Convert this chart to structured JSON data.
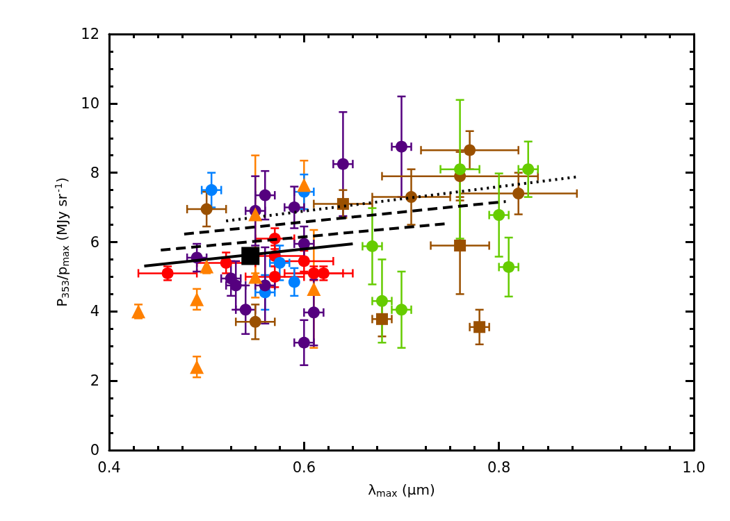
{
  "chart_data": {
    "type": "scatter",
    "xlabel": "λ$_{max}$ (μm)",
    "ylabel": "P$_{353}$/p$_{max}$ (MJy sr$^{-1}$)",
    "xlim": [
      0.4,
      1.0
    ],
    "xticks": [
      0.4,
      0.6,
      0.8,
      {
        "value": 1.0,
        "label": "1.0"
      }
    ],
    "ylim": [
      0,
      12
    ],
    "yticks": [
      0,
      2,
      4,
      6,
      8,
      10,
      12
    ],
    "grid": false,
    "series": [
      {
        "marker": "triangle",
        "color": "#ff8000",
        "x": [
          0.43,
          0.49,
          0.49,
          0.5,
          0.55,
          0.55,
          0.6,
          0.61
        ],
        "values": [
          4.0,
          4.35,
          2.4,
          5.3,
          5.0,
          6.8,
          7.65,
          4.65
        ],
        "errors": [
          0.2,
          0.3,
          0.3,
          0.2,
          0.6,
          1.7,
          0.7,
          1.7
        ],
        "xerrors": [
          null,
          null,
          null,
          null,
          null,
          null,
          null,
          null
        ]
      },
      {
        "marker": "circle",
        "color": "#ff0000",
        "x": [
          0.46,
          0.52,
          0.57,
          0.57,
          0.57,
          0.6,
          0.61,
          0.62
        ],
        "values": [
          5.1,
          5.4,
          5.0,
          5.6,
          6.1,
          5.45,
          5.1,
          5.1
        ],
        "errors": [
          0.2,
          0.3,
          0.3,
          0.3,
          0.3,
          0.3,
          0.2,
          0.2
        ],
        "xerrors": [
          0.03,
          0.03,
          0.03,
          0.03,
          0.02,
          0.03,
          0.03,
          0.03
        ]
      },
      {
        "marker": "circle",
        "color": "#0080ff",
        "x": [
          0.505,
          0.6,
          0.59,
          0.56,
          0.575
        ],
        "values": [
          7.5,
          7.45,
          4.85,
          4.55,
          5.4
        ],
        "errors": [
          0.5,
          0.5,
          0.4,
          0.5,
          0.5
        ],
        "xerrors": [
          0.01,
          0.01,
          null,
          0.01,
          0.01
        ]
      },
      {
        "marker": "circle",
        "color": "#55007f",
        "x": [
          0.64,
          0.7,
          0.56,
          0.55,
          0.59,
          0.53,
          0.54,
          0.56,
          0.6,
          0.61,
          0.49,
          0.525,
          0.6
        ],
        "values": [
          8.25,
          8.75,
          7.35,
          6.9,
          7.0,
          4.75,
          4.05,
          4.75,
          3.1,
          3.97,
          5.55,
          4.95,
          5.95
        ],
        "errors": [
          1.5,
          1.45,
          0.7,
          1.0,
          0.6,
          0.7,
          0.7,
          1.1,
          0.65,
          0.95,
          0.4,
          0.5,
          0.5
        ],
        "xerrors": [
          0.01,
          0.01,
          0.01,
          0.01,
          0.01,
          0.01,
          0.01,
          0.01,
          0.01,
          0.01,
          0.01,
          0.01,
          0.01
        ]
      },
      {
        "marker": "circle",
        "color": "#9a5000",
        "x": [
          0.5,
          0.55,
          0.71,
          0.77,
          0.76,
          0.82
        ],
        "values": [
          6.95,
          3.7,
          7.3,
          8.65,
          7.9,
          7.4
        ],
        "errors": [
          0.5,
          0.5,
          0.8,
          0.55,
          0.7,
          0.6
        ],
        "xerrors": [
          0.02,
          0.02,
          0.04,
          0.05,
          0.08,
          0.06
        ]
      },
      {
        "marker": "square",
        "color": "#9a5000",
        "x": [
          0.68,
          0.76,
          0.78,
          0.64
        ],
        "values": [
          3.78,
          5.9,
          3.55,
          7.1
        ],
        "errors": [
          0.5,
          1.4,
          0.5,
          0.4
        ],
        "xerrors": [
          0.01,
          0.03,
          0.01,
          0.03
        ]
      },
      {
        "marker": "circle",
        "color": "#66cc00",
        "x": [
          0.67,
          0.68,
          0.7,
          0.76,
          0.8,
          0.81,
          0.83
        ],
        "values": [
          5.88,
          4.3,
          4.05,
          8.1,
          6.78,
          5.28,
          8.1
        ],
        "errors": [
          1.1,
          1.2,
          1.1,
          2.0,
          1.2,
          0.85,
          0.8
        ],
        "xerrors": [
          0.01,
          0.01,
          0.01,
          0.02,
          0.01,
          0.01,
          0.01
        ]
      },
      {
        "marker": "square",
        "color": "#000000",
        "x": [
          0.545
        ],
        "values": [
          5.6
        ]
      },
      {
        "type": "line",
        "marker": "none",
        "line_style": "solid",
        "color": "#000000",
        "x": [
          0.436,
          0.65
        ],
        "values": [
          5.31,
          5.95
        ]
      },
      {
        "type": "line",
        "marker": "none",
        "line_style": "dashed",
        "color": "#000000",
        "x": [
          0.453,
          0.745
        ],
        "values": [
          5.77,
          6.53
        ]
      },
      {
        "type": "line",
        "marker": "none",
        "line_style": "dashed",
        "color": "#000000",
        "x": [
          0.477,
          0.807
        ],
        "values": [
          6.23,
          7.17
        ]
      },
      {
        "type": "line",
        "marker": "none",
        "line_style": "dotted",
        "color": "#000000",
        "x": [
          0.52,
          0.88
        ],
        "values": [
          6.61,
          7.88
        ]
      }
    ]
  }
}
